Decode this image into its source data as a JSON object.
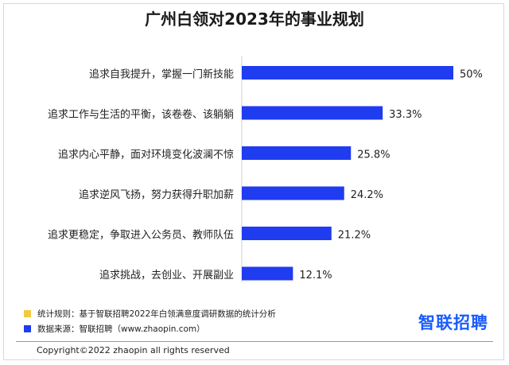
{
  "chart_data": {
    "type": "bar",
    "orientation": "horizontal",
    "title": "广州白领对2023年的事业规划",
    "categories": [
      "追求自我提升，掌握一门新技能",
      "追求工作与生活的平衡，该卷卷、该躺躺",
      "追求内心平静，面对环境变化波澜不惊",
      "追求逆风飞扬，努力获得升职加薪",
      "追求更稳定，争取进入公务员、教师队伍",
      "追求挑战，去创业、开展副业"
    ],
    "values": [
      50,
      33.3,
      25.8,
      24.2,
      21.2,
      12.1
    ],
    "value_labels": [
      "50%",
      "33.3%",
      "25.8%",
      "24.2%",
      "21.2%",
      "12.1%"
    ],
    "unit": "%",
    "xlim": [
      0,
      50
    ],
    "grid": false,
    "bar_color": "#1f3cf0"
  },
  "notes": [
    {
      "text": "统计规则：基于智联招聘2022年白领满意度调研数据的统计分析",
      "color": "#f5c842"
    },
    {
      "text": "数据来源：智联招聘（www.zhaopin.com）",
      "color": "#1f3cf0"
    }
  ],
  "logo": "智联招聘",
  "copyright": "Copyright©2022 zhaopin all rights reserved"
}
